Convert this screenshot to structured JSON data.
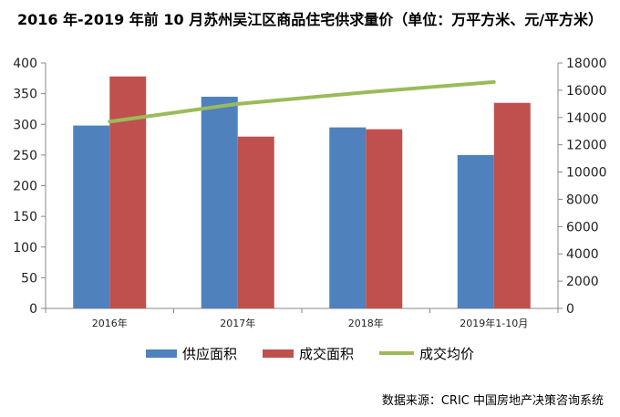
{
  "title": "2016 年-2019 年前 10 月苏州吴江区商品住宅供求量价（单位：万平方米、元/平方米）",
  "source": "数据来源：CRIC 中国房地产决策咨询系统",
  "colors": {
    "supply": "#4F81BD",
    "deal": "#C0504D",
    "price": "#9BBB59"
  },
  "chart_data": {
    "type": "bar",
    "categories": [
      "2016年",
      "2017年",
      "2018年",
      "2019年1-10月"
    ],
    "series": [
      {
        "name": "供应面积",
        "kind": "bar",
        "axis": "left",
        "values": [
          298,
          345,
          295,
          250
        ]
      },
      {
        "name": "成交面积",
        "kind": "bar",
        "axis": "left",
        "values": [
          378,
          280,
          292,
          335
        ]
      },
      {
        "name": "成交均价",
        "kind": "line",
        "axis": "right",
        "values": [
          13700,
          15000,
          15850,
          16600
        ]
      }
    ],
    "y_left": {
      "min": 0,
      "max": 400,
      "step": 50
    },
    "y_right": {
      "min": 0,
      "max": 18000,
      "step": 2000
    },
    "legend_position": "bottom"
  }
}
